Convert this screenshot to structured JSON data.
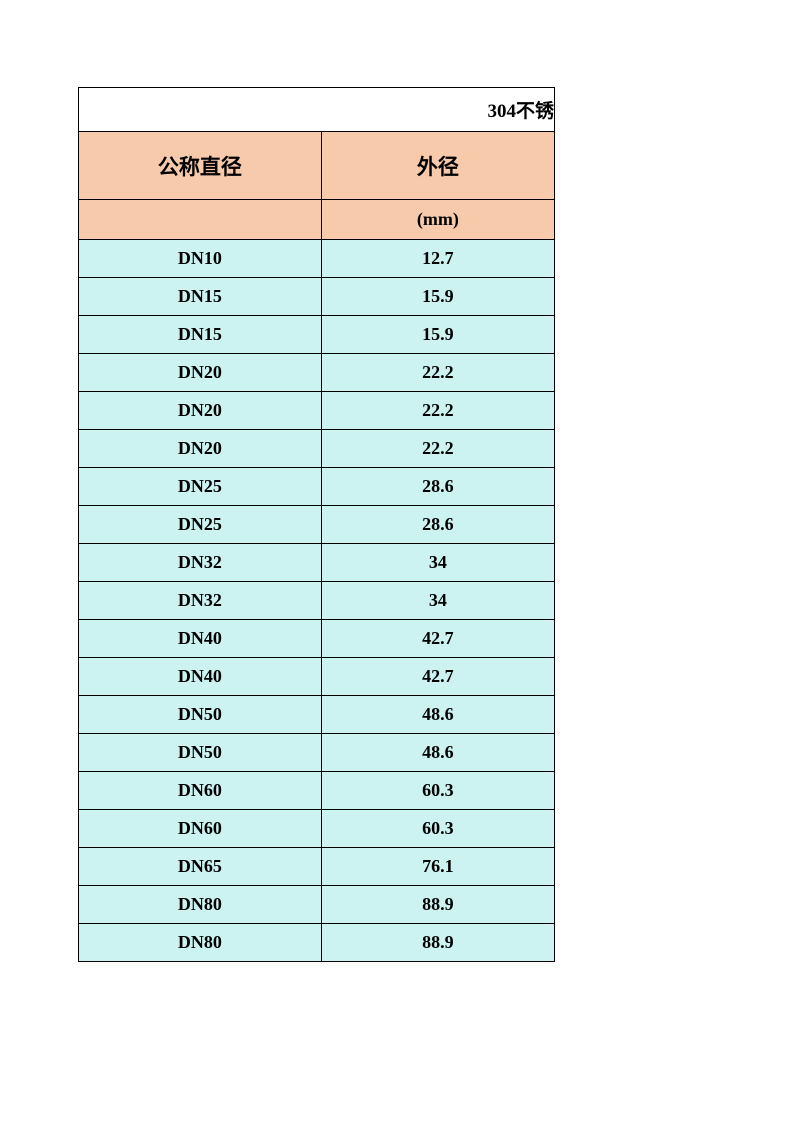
{
  "table": {
    "title": "304不锈",
    "header1": {
      "col1": "公称直径",
      "col2": "外径"
    },
    "header2": {
      "col1": "",
      "col2": "(mm)"
    },
    "rows": [
      {
        "col1": "DN10",
        "col2": "12.7"
      },
      {
        "col1": "DN15",
        "col2": "15.9"
      },
      {
        "col1": "DN15",
        "col2": "15.9"
      },
      {
        "col1": "DN20",
        "col2": "22.2"
      },
      {
        "col1": "DN20",
        "col2": "22.2"
      },
      {
        "col1": "DN20",
        "col2": "22.2"
      },
      {
        "col1": "DN25",
        "col2": "28.6"
      },
      {
        "col1": "DN25",
        "col2": "28.6"
      },
      {
        "col1": "DN32",
        "col2": "34"
      },
      {
        "col1": "DN32",
        "col2": "34"
      },
      {
        "col1": "DN40",
        "col2": "42.7"
      },
      {
        "col1": "DN40",
        "col2": "42.7"
      },
      {
        "col1": "DN50",
        "col2": "48.6"
      },
      {
        "col1": "DN50",
        "col2": "48.6"
      },
      {
        "col1": "DN60",
        "col2": "60.3"
      },
      {
        "col1": "DN60",
        "col2": "60.3"
      },
      {
        "col1": "DN65",
        "col2": "76.1"
      },
      {
        "col1": "DN80",
        "col2": "88.9"
      },
      {
        "col1": "DN80",
        "col2": "88.9"
      }
    ],
    "colors": {
      "title_bg": "#ffffff",
      "header_bg": "#f7caac",
      "data_bg": "#ccf2f2",
      "border": "#000000",
      "text": "#000000"
    },
    "fonts": {
      "title_size": 19,
      "header_size": 21,
      "subheader_size": 18,
      "data_size": 18,
      "weight": "bold",
      "family": "SimSun"
    },
    "layout": {
      "col1_width_pct": 51,
      "col2_width_pct": 49,
      "title_height": 44,
      "header1_height": 68,
      "header2_height": 40,
      "data_row_height": 38
    }
  }
}
